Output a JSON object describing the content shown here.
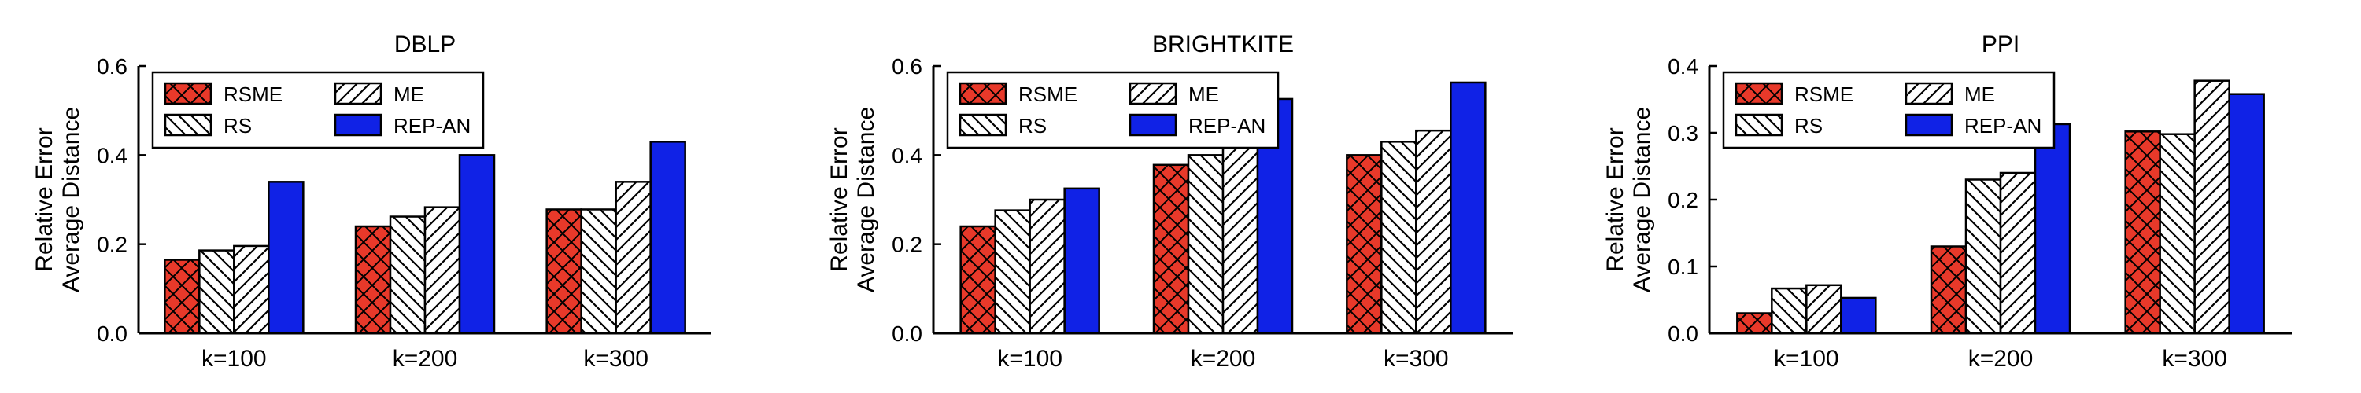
{
  "colors": {
    "rsme": "#e8392a",
    "rep_an": "#1022e6",
    "pattern_stroke": "#000000",
    "background": "#ffffff"
  },
  "chart_data": [
    {
      "type": "bar",
      "title": "DBLP",
      "ylabel": [
        "Relative Error",
        "Average Distance"
      ],
      "xlabel": "",
      "categories": [
        "k=100",
        "k=200",
        "k=300"
      ],
      "ylim": [
        0,
        0.6
      ],
      "yticks": [
        "0.0",
        "0.2",
        "0.4",
        "0.6"
      ],
      "legend_placement": "top-left",
      "series": [
        {
          "name": "RSME",
          "pattern": "crosshatch",
          "values": [
            0.165,
            0.24,
            0.278
          ]
        },
        {
          "name": "RS",
          "pattern": "backslash",
          "values": [
            0.186,
            0.262,
            0.278
          ]
        },
        {
          "name": "ME",
          "pattern": "slash",
          "values": [
            0.196,
            0.283,
            0.34
          ]
        },
        {
          "name": "REP-AN",
          "pattern": "solid",
          "values": [
            0.34,
            0.4,
            0.43
          ]
        }
      ]
    },
    {
      "type": "bar",
      "title": "BRIGHTKITE",
      "ylabel": [
        "Relative Error",
        "Average Distance"
      ],
      "xlabel": "",
      "categories": [
        "k=100",
        "k=200",
        "k=300"
      ],
      "ylim": [
        0,
        0.6
      ],
      "yticks": [
        "0.0",
        "0.2",
        "0.4",
        "0.6"
      ],
      "legend_placement": "top-left",
      "series": [
        {
          "name": "RSME",
          "pattern": "crosshatch",
          "values": [
            0.24,
            0.378,
            0.4
          ]
        },
        {
          "name": "RS",
          "pattern": "backslash",
          "values": [
            0.276,
            0.4,
            0.43
          ]
        },
        {
          "name": "ME",
          "pattern": "slash",
          "values": [
            0.3,
            0.433,
            0.455
          ]
        },
        {
          "name": "REP-AN",
          "pattern": "solid",
          "values": [
            0.325,
            0.526,
            0.563
          ]
        }
      ]
    },
    {
      "type": "bar",
      "title": "PPI",
      "ylabel": [
        "Relative Error",
        "Average Distance"
      ],
      "xlabel": "",
      "categories": [
        "k=100",
        "k=200",
        "k=300"
      ],
      "ylim": [
        0,
        0.4
      ],
      "yticks": [
        "0.0",
        "0.1",
        "0.2",
        "0.3",
        "0.4"
      ],
      "legend_placement": "top-left",
      "series": [
        {
          "name": "RSME",
          "pattern": "crosshatch",
          "values": [
            0.03,
            0.13,
            0.302
          ]
        },
        {
          "name": "RS",
          "pattern": "backslash",
          "values": [
            0.067,
            0.23,
            0.298
          ]
        },
        {
          "name": "ME",
          "pattern": "slash",
          "values": [
            0.072,
            0.24,
            0.378
          ]
        },
        {
          "name": "REP-AN",
          "pattern": "solid",
          "values": [
            0.053,
            0.313,
            0.358
          ]
        }
      ]
    }
  ]
}
